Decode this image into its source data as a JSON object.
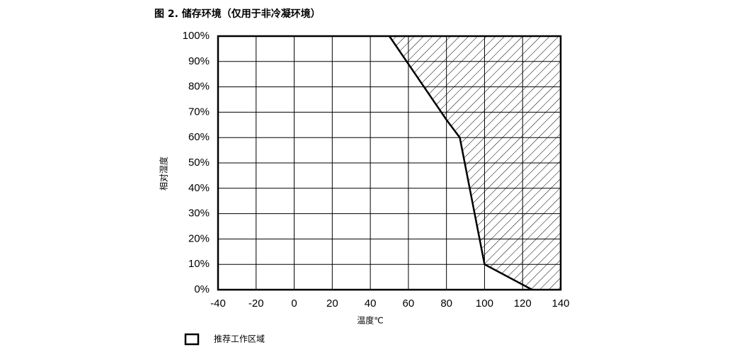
{
  "chart_data": {
    "type": "area",
    "title": "图 2. 储存环境（仅用于非冷凝环境）",
    "x_label": "温度℃",
    "y_label": "相对湿度",
    "x": [
      50,
      80,
      87,
      100,
      125
    ],
    "series": [
      {
        "name": "推荐工作区域",
        "color": "#ffffff",
        "values": [
          100,
          67,
          60,
          10,
          0
        ]
      }
    ],
    "xlim": [
      -40,
      140
    ],
    "xticks": [
      -40,
      -20,
      0,
      20,
      40,
      60,
      80,
      100,
      120,
      140
    ],
    "ylim": [
      0,
      100
    ],
    "yticks": [
      {
        "value": 0,
        "label": "0%"
      },
      {
        "value": 10,
        "label": "10%"
      },
      {
        "value": 20,
        "label": "20%"
      },
      {
        "value": 30,
        "label": "30%"
      },
      {
        "value": 40,
        "label": "40%"
      },
      {
        "value": 50,
        "label": "50%"
      },
      {
        "value": 60,
        "label": "60%"
      },
      {
        "value": 70,
        "label": "70%"
      },
      {
        "value": 80,
        "label": "80%"
      },
      {
        "value": 90,
        "label": "90%"
      },
      {
        "value": 100,
        "label": "100%"
      }
    ],
    "grid": true
  }
}
